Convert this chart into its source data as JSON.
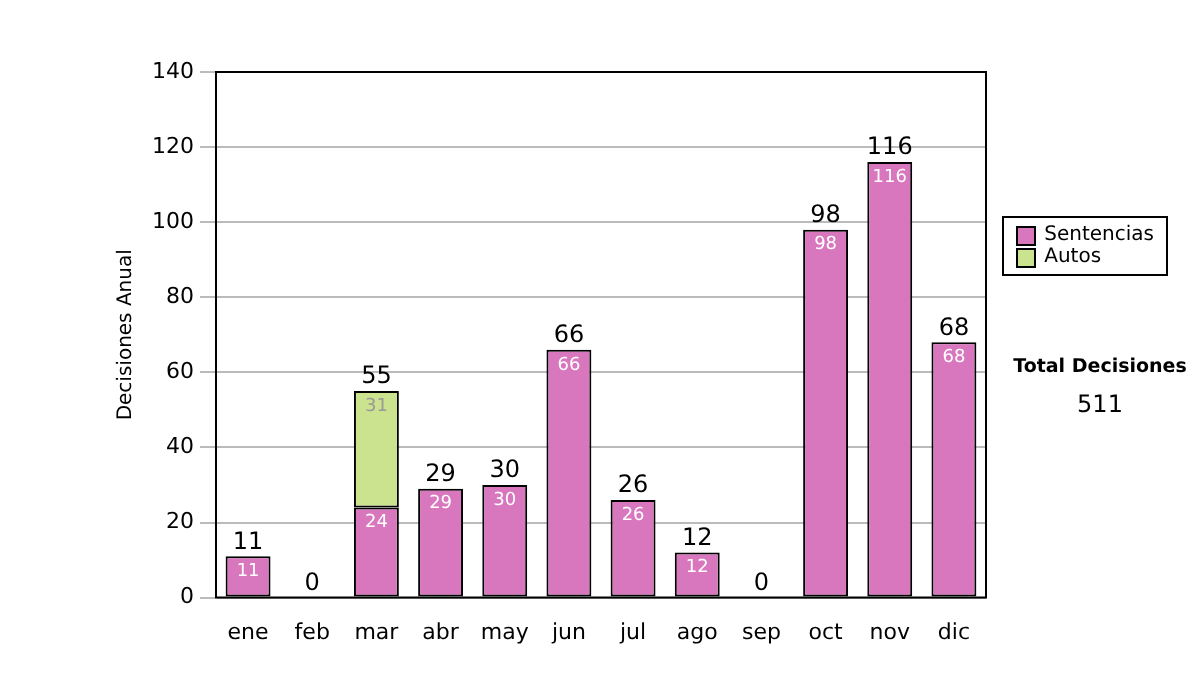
{
  "chart_data": {
    "type": "bar",
    "stacked": true,
    "ylabel": "Decisiones Anual",
    "categories": [
      "ene",
      "feb",
      "mar",
      "abr",
      "may",
      "jun",
      "jul",
      "ago",
      "sep",
      "oct",
      "nov",
      "dic"
    ],
    "series": [
      {
        "name": "Sentencias",
        "color": "#d877bd",
        "values": [
          11,
          0,
          24,
          29,
          30,
          66,
          26,
          12,
          0,
          98,
          116,
          68
        ],
        "value_labels": [
          "11",
          null,
          "24",
          "29",
          "30",
          "66",
          "26",
          "12",
          null,
          "98",
          "116",
          "68"
        ]
      },
      {
        "name": "Autos",
        "color": "#cbe28f",
        "values": [
          0,
          0,
          31,
          0,
          0,
          0,
          0,
          0,
          0,
          0,
          0,
          0
        ],
        "value_labels": [
          null,
          null,
          "31",
          null,
          null,
          null,
          null,
          null,
          null,
          null,
          null,
          null
        ]
      }
    ],
    "totals": [
      "11",
      "0",
      "55",
      "29",
      "30",
      "66",
      "26",
      "12",
      "0",
      "98",
      "116",
      "68"
    ],
    "ylim": [
      0,
      140
    ],
    "yticks": [
      0,
      20,
      40,
      60,
      80,
      100,
      120,
      140
    ],
    "grid": "y",
    "legend": "right",
    "annotations": [
      "Total Decisiones",
      "511"
    ]
  }
}
